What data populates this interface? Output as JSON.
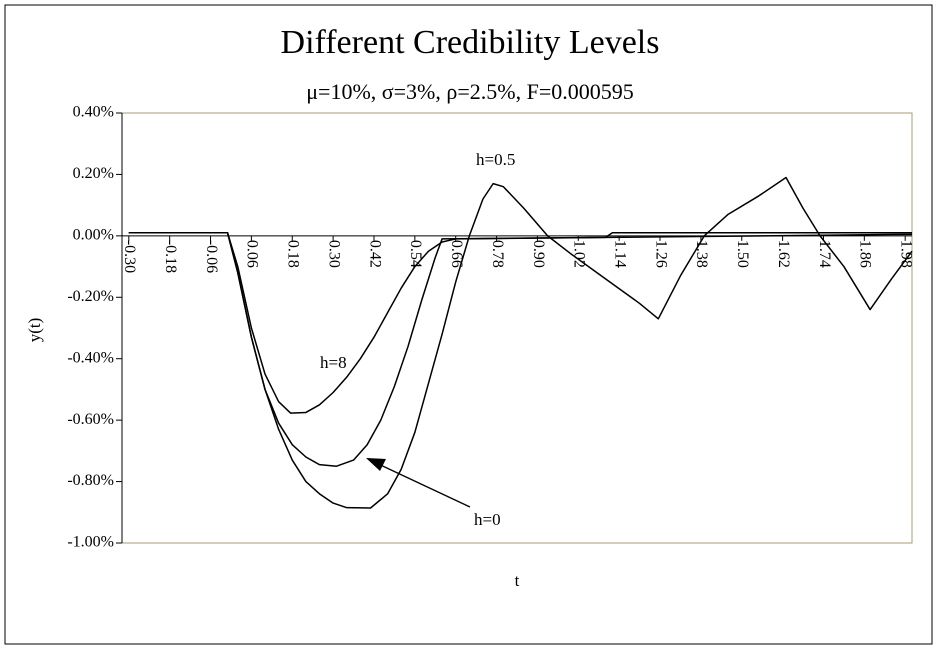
{
  "chart_data": {
    "type": "line",
    "title": "Different Credibility Levels",
    "subtitle": "μ=10%, σ=3%, ρ=2.5%, F=0.000595",
    "x_label": "t",
    "y_label": "y(t)",
    "xlim": [
      -0.32,
      2.0
    ],
    "xticks": [
      {
        "value": -0.3,
        "label": "-0.30"
      },
      -0.18,
      -0.06,
      0.06,
      0.18,
      {
        "value": 0.3,
        "label": "0.30"
      },
      0.42,
      0.54,
      0.66,
      0.78,
      {
        "value": 0.9,
        "label": "0.90"
      },
      1.02,
      1.14,
      1.26,
      1.38,
      {
        "value": 1.5,
        "label": "1.50"
      },
      1.62,
      1.74,
      1.86,
      1.98
    ],
    "ylim": [
      -1.0,
      0.4
    ],
    "yticks": [
      {
        "value": 0.4,
        "label": "0.40%"
      },
      {
        "value": 0.2,
        "label": "0.20%"
      },
      {
        "value": 0,
        "label": "0.00%"
      },
      {
        "value": -0.2,
        "label": "-0.20%"
      },
      {
        "value": -0.4,
        "label": "-0.40%"
      },
      {
        "value": -0.6,
        "label": "-0.60%"
      },
      {
        "value": -0.8,
        "label": "-0.80%"
      },
      {
        "value": -1.0,
        "label": "-1.00%"
      }
    ],
    "grid": false,
    "annotations": [
      "h=0.5",
      "h=8",
      "h=0"
    ],
    "series": [
      {
        "name": "h=0.5",
        "color": "#000000",
        "x": [
          -0.3,
          -0.01,
          0.02,
          0.06,
          0.1,
          0.14,
          0.18,
          0.22,
          0.26,
          0.3,
          0.34,
          0.41,
          0.46,
          0.5,
          0.54,
          0.58,
          0.62,
          0.66,
          0.7,
          0.74,
          0.77,
          0.8,
          0.86,
          0.93,
          1.0,
          1.1,
          1.2,
          1.255,
          1.32,
          1.39,
          1.46,
          1.55,
          1.63,
          1.68,
          1.73,
          1.8,
          1.877,
          1.94,
          2.0
        ],
        "values": [
          0.01,
          0.01,
          -0.12,
          -0.33,
          -0.5,
          -0.63,
          -0.73,
          -0.8,
          -0.84,
          -0.87,
          -0.885,
          -0.886,
          -0.84,
          -0.76,
          -0.64,
          -0.48,
          -0.32,
          -0.15,
          0.0,
          0.12,
          0.17,
          0.16,
          0.09,
          0.0,
          -0.06,
          -0.14,
          -0.22,
          -0.27,
          -0.13,
          0.0,
          0.07,
          0.13,
          0.19,
          0.09,
          0.0,
          -0.1,
          -0.24,
          -0.14,
          -0.05
        ]
      },
      {
        "name": "h=8",
        "color": "#000000",
        "x": [
          -0.3,
          -0.01,
          0.02,
          0.06,
          0.1,
          0.14,
          0.175,
          0.22,
          0.26,
          0.3,
          0.34,
          0.38,
          0.42,
          0.46,
          0.5,
          0.54,
          0.58,
          0.62,
          0.66,
          2.0
        ],
        "values": [
          0.01,
          0.01,
          -0.1,
          -0.3,
          -0.45,
          -0.54,
          -0.577,
          -0.575,
          -0.55,
          -0.51,
          -0.46,
          -0.4,
          -0.33,
          -0.25,
          -0.17,
          -0.1,
          -0.05,
          -0.02,
          -0.01,
          0.005
        ]
      },
      {
        "name": "h=0",
        "color": "#000000",
        "x": [
          -0.3,
          -0.01,
          0.02,
          0.06,
          0.1,
          0.14,
          0.18,
          0.22,
          0.26,
          0.31,
          0.36,
          0.4,
          0.44,
          0.48,
          0.52,
          0.56,
          0.6,
          0.62,
          1.1,
          1.12,
          2.0
        ],
        "values": [
          0.01,
          0.01,
          -0.12,
          -0.33,
          -0.5,
          -0.61,
          -0.68,
          -0.72,
          -0.745,
          -0.75,
          -0.73,
          -0.68,
          -0.6,
          -0.49,
          -0.36,
          -0.21,
          -0.07,
          -0.01,
          -0.005,
          0.01,
          0.01
        ]
      }
    ]
  }
}
